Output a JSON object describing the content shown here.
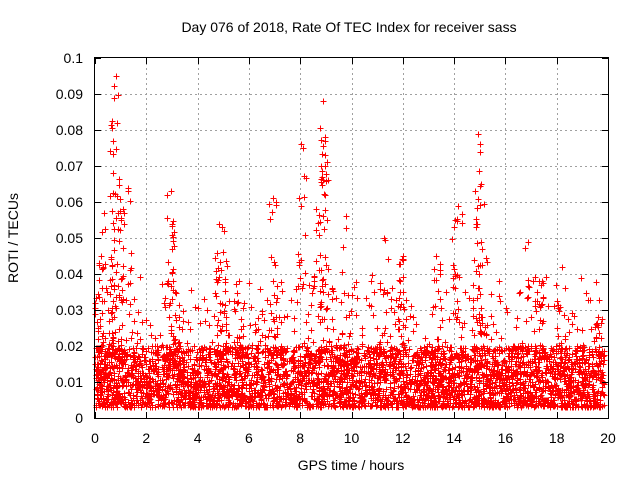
{
  "chart_data": {
    "type": "scatter",
    "title": "Day 076 of 2018, Rate Of TEC Index for receiver sass",
    "xlabel": "GPS time / hours",
    "ylabel": "ROTI / TECUs",
    "xlim": [
      0,
      20
    ],
    "ylim": [
      0,
      0.1
    ],
    "xticks": [
      0,
      2,
      4,
      6,
      8,
      10,
      12,
      14,
      16,
      18,
      20
    ],
    "xtick_labels": [
      "0",
      "2",
      "4",
      "6",
      "8",
      "10",
      "12",
      "14",
      "16",
      "18",
      "20"
    ],
    "yticks": [
      0,
      0.01,
      0.02,
      0.03,
      0.04,
      0.05,
      0.06,
      0.07,
      0.08,
      0.09,
      0.1
    ],
    "ytick_labels": [
      "0",
      "0.01",
      "0.02",
      "0.03",
      "0.04",
      "0.05",
      "0.06",
      "0.07",
      "0.08",
      "0.09",
      "0.1"
    ],
    "grid": true,
    "marker": "+",
    "color": "#ff0000",
    "series": [
      {
        "name": "ROTI",
        "x_range": [
          0,
          19.85
        ],
        "baseline_range": [
          0.003,
          0.02
        ],
        "notable_points": [
          {
            "x": 0.8,
            "y": 0.095
          },
          {
            "x": 0.75,
            "y": 0.089
          },
          {
            "x": 0.85,
            "y": 0.082
          },
          {
            "x": 0.7,
            "y": 0.068
          },
          {
            "x": 1.3,
            "y": 0.064
          },
          {
            "x": 1.1,
            "y": 0.058
          },
          {
            "x": 0.35,
            "y": 0.057
          },
          {
            "x": 0.15,
            "y": 0.043
          },
          {
            "x": 2.95,
            "y": 0.063
          },
          {
            "x": 3.0,
            "y": 0.054
          },
          {
            "x": 4.85,
            "y": 0.054
          },
          {
            "x": 5.0,
            "y": 0.046
          },
          {
            "x": 5.6,
            "y": 0.038
          },
          {
            "x": 6.95,
            "y": 0.061
          },
          {
            "x": 7.05,
            "y": 0.06
          },
          {
            "x": 8.05,
            "y": 0.076
          },
          {
            "x": 8.6,
            "y": 0.058
          },
          {
            "x": 8.9,
            "y": 0.088
          },
          {
            "x": 8.95,
            "y": 0.078
          },
          {
            "x": 8.85,
            "y": 0.067
          },
          {
            "x": 9.8,
            "y": 0.056
          },
          {
            "x": 11.25,
            "y": 0.05
          },
          {
            "x": 12.0,
            "y": 0.045
          },
          {
            "x": 13.3,
            "y": 0.045
          },
          {
            "x": 14.15,
            "y": 0.059
          },
          {
            "x": 14.05,
            "y": 0.055
          },
          {
            "x": 14.95,
            "y": 0.079
          },
          {
            "x": 15.0,
            "y": 0.074
          },
          {
            "x": 14.9,
            "y": 0.054
          },
          {
            "x": 15.1,
            "y": 0.047
          },
          {
            "x": 16.9,
            "y": 0.049
          },
          {
            "x": 17.3,
            "y": 0.038
          },
          {
            "x": 18.2,
            "y": 0.042
          },
          {
            "x": 19.6,
            "y": 0.028
          }
        ]
      }
    ]
  }
}
